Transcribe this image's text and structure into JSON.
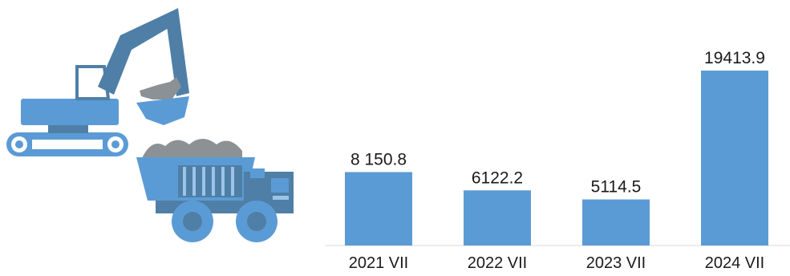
{
  "chart_data": {
    "type": "bar",
    "categories": [
      "2021 VII",
      "2022 VII",
      "2023 VII",
      "2024 VII"
    ],
    "values": [
      8150.8,
      6122.2,
      5114.5,
      19413.9
    ],
    "value_labels": [
      "8 150.8",
      "6122.2",
      "5114.5",
      "19413.9"
    ],
    "bar_color": "#5b9bd5",
    "grid": false,
    "legend": "none"
  },
  "illustration": {
    "icons": [
      "excavator-icon",
      "dump-truck-icon"
    ],
    "colors": {
      "dark": "#4f7fa6",
      "light": "#5b9bd5",
      "rock": "#8c9196"
    }
  }
}
